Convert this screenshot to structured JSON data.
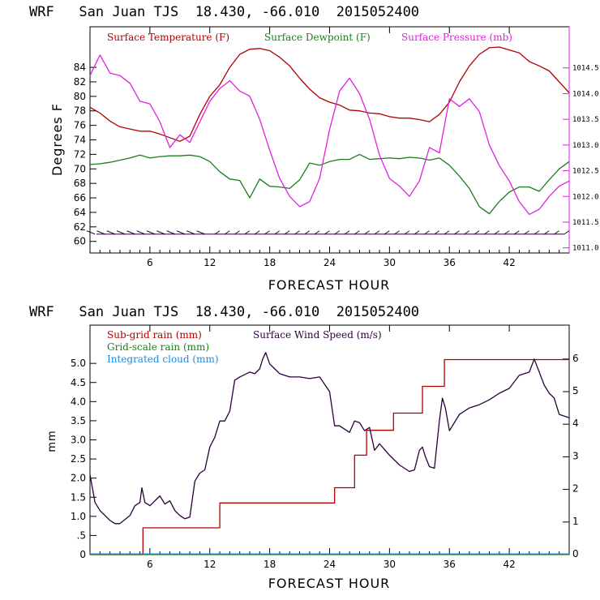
{
  "chart_data": [
    {
      "type": "line",
      "title": "WRF   San Juan TJS  18.430, -66.010  2015052400",
      "xlabel": "FORECAST HOUR",
      "ylabel": "Degrees F",
      "xlim": [
        0,
        48
      ],
      "ylim": [
        58.4,
        89.6
      ],
      "xticks": [
        "6",
        "12",
        "18",
        "24",
        "30",
        "36",
        "42"
      ],
      "yticks": [
        "60",
        "62",
        "64",
        "66",
        "68",
        "70",
        "72",
        "74",
        "76",
        "78",
        "80",
        "82",
        "84"
      ],
      "y2lim": [
        1010.9,
        1015.3
      ],
      "y2ticks": [
        "1011.0",
        "1011.5",
        "1012.0",
        "1012.5",
        "1013.0",
        "1013.5",
        "1014.0",
        "1014.5"
      ],
      "legend_position": "top",
      "colors": {
        "temperature": "#b00000",
        "dewpoint": "#1c7c1c",
        "pressure": "#e020e0",
        "barbs": "#2a003a"
      },
      "series": [
        {
          "name": "Surface Temperature (F)",
          "axis": "left",
          "x": [
            0,
            1,
            2,
            3,
            4,
            5,
            6,
            7,
            8,
            9,
            10,
            11,
            12,
            13,
            14,
            15,
            16,
            17,
            18,
            19,
            20,
            21,
            22,
            23,
            24,
            25,
            26,
            27,
            28,
            29,
            30,
            31,
            32,
            33,
            34,
            35,
            36,
            37,
            38,
            39,
            40,
            41,
            42,
            43,
            44,
            45,
            46,
            47,
            48
          ],
          "values": [
            78.5,
            77.7,
            76.6,
            75.8,
            75.5,
            75.2,
            75.2,
            74.8,
            74.3,
            73.8,
            74.5,
            77.5,
            80,
            81.6,
            84,
            85.8,
            86.5,
            86.6,
            86.3,
            85.4,
            84.2,
            82.5,
            81,
            79.8,
            79.2,
            78.8,
            78.1,
            78,
            77.7,
            77.6,
            77.2,
            77,
            77,
            76.8,
            76.5,
            77.5,
            79.2,
            82,
            84.2,
            85.8,
            86.7,
            86.8,
            86.4,
            86,
            84.8,
            84.2,
            83.5,
            82,
            80.5
          ]
        },
        {
          "name": "Surface Dewpoint (F)",
          "axis": "left",
          "x": [
            0,
            1,
            2,
            3,
            4,
            5,
            6,
            7,
            8,
            9,
            10,
            11,
            12,
            13,
            14,
            15,
            16,
            17,
            18,
            19,
            20,
            21,
            22,
            23,
            24,
            25,
            26,
            27,
            28,
            29,
            30,
            31,
            32,
            33,
            34,
            35,
            36,
            37,
            38,
            39,
            40,
            41,
            42,
            43,
            44,
            45,
            46,
            47,
            48
          ],
          "values": [
            70.6,
            70.7,
            70.9,
            71.2,
            71.5,
            71.9,
            71.5,
            71.7,
            71.8,
            71.8,
            71.9,
            71.7,
            71,
            69.6,
            68.6,
            68.4,
            66,
            68.6,
            67.6,
            67.5,
            67.3,
            68.5,
            70.8,
            70.5,
            71,
            71.3,
            71.3,
            72,
            71.3,
            71.4,
            71.5,
            71.4,
            71.6,
            71.5,
            71.2,
            71.5,
            70.5,
            69,
            67.3,
            64.8,
            63.8,
            65.5,
            66.8,
            67.5,
            67.5,
            66.9,
            68.5,
            70,
            71
          ]
        },
        {
          "name": "Surface Pressure (mb)",
          "axis": "right",
          "x": [
            0,
            1,
            2,
            3,
            4,
            5,
            6,
            7,
            8,
            9,
            10,
            11,
            12,
            13,
            14,
            15,
            16,
            17,
            18,
            19,
            20,
            21,
            22,
            23,
            24,
            25,
            26,
            27,
            28,
            29,
            30,
            31,
            32,
            33,
            34,
            35,
            36,
            37,
            38,
            39,
            40,
            41,
            42,
            43,
            44,
            45,
            46,
            47,
            48
          ],
          "values": [
            1014.35,
            1014.75,
            1014.4,
            1014.35,
            1014.2,
            1013.85,
            1013.8,
            1013.45,
            1012.95,
            1013.2,
            1013.05,
            1013.45,
            1013.85,
            1014.1,
            1014.25,
            1014.05,
            1013.95,
            1013.5,
            1012.9,
            1012.35,
            1012.0,
            1011.8,
            1011.9,
            1012.35,
            1013.3,
            1014.05,
            1014.3,
            1014.0,
            1013.5,
            1012.8,
            1012.35,
            1012.2,
            1012.0,
            1012.3,
            1012.95,
            1012.85,
            1013.9,
            1013.75,
            1013.9,
            1013.65,
            1013.0,
            1012.6,
            1012.3,
            1011.9,
            1011.65,
            1011.75,
            1012.0,
            1012.2,
            1012.3
          ]
        }
      ]
    },
    {
      "type": "line",
      "title": "WRF   San Juan TJS  18.430, -66.010  2015052400",
      "xlabel": "FORECAST HOUR",
      "ylabel": "mm",
      "xlim": [
        0,
        48
      ],
      "ylim": [
        0,
        6.0
      ],
      "xticks": [
        "6",
        "12",
        "18",
        "24",
        "30",
        "36",
        "42"
      ],
      "yticks": [
        "0",
        ".5",
        "1.0",
        "1.5",
        "2.0",
        "2.5",
        "3.0",
        "3.5",
        "4.0",
        "4.5",
        "5.0"
      ],
      "y2lim": [
        0,
        7.04
      ],
      "y2ticks": [
        "0",
        "1",
        "2",
        "3",
        "4",
        "5",
        "6"
      ],
      "legend_position": "top-left",
      "colors": {
        "subgrid": "#b00000",
        "gridscale": "#1c7c1c",
        "cloud": "#1c8ce0",
        "wind": "#2a003a"
      },
      "series": [
        {
          "name": "Sub-grid rain (mm)",
          "axis": "left",
          "step": true,
          "x": [
            0,
            5.2,
            5.3,
            12.7,
            13,
            23.7,
            24.5,
            25.7,
            26.5,
            27.7,
            28.6,
            30.1,
            30.4,
            32.9,
            33.3,
            34.8,
            35.5,
            48
          ],
          "values": [
            0,
            0,
            0.7,
            0.7,
            1.35,
            1.35,
            1.75,
            1.75,
            2.6,
            3.25,
            3.25,
            3.25,
            3.7,
            3.7,
            4.4,
            4.4,
            5.1,
            5.1
          ]
        },
        {
          "name": "Grid-scale rain (mm)",
          "axis": "left",
          "x": [
            0,
            48
          ],
          "values": [
            0,
            0
          ]
        },
        {
          "name": "Integrated cloud (mm)",
          "axis": "left",
          "x": [
            0,
            48
          ],
          "values": [
            0.02,
            0.02
          ]
        },
        {
          "name": "Surface Wind Speed (m/s)",
          "axis": "right",
          "x": [
            0,
            0.5,
            1,
            2,
            2.5,
            3,
            4,
            4.5,
            5,
            5.2,
            5.5,
            6,
            7,
            7.5,
            8,
            8.5,
            9,
            9.5,
            10,
            10.5,
            11,
            11.5,
            12,
            12.5,
            13,
            13.5,
            14,
            14.5,
            15,
            16,
            16.5,
            17,
            17.3,
            17.6,
            18,
            18.5,
            19,
            20,
            21,
            22,
            23,
            24,
            24.5,
            25,
            26,
            26.5,
            27,
            27.5,
            28,
            28.5,
            29,
            30,
            31,
            32,
            32.5,
            33,
            33.3,
            33.6,
            34,
            34.5,
            35,
            35.3,
            35.6,
            36,
            37,
            38,
            39,
            40,
            41,
            42,
            43,
            44,
            44.5,
            45,
            45.5,
            46,
            46.5,
            47,
            48
          ],
          "values": [
            2.45,
            1.6,
            1.35,
            1.05,
            0.95,
            0.95,
            1.2,
            1.5,
            1.6,
            2.05,
            1.6,
            1.5,
            1.8,
            1.55,
            1.65,
            1.35,
            1.2,
            1.1,
            1.15,
            2.25,
            2.5,
            2.6,
            3.3,
            3.6,
            4.1,
            4.1,
            4.4,
            5.35,
            5.45,
            5.6,
            5.55,
            5.7,
            6.0,
            6.2,
            5.85,
            5.7,
            5.55,
            5.45,
            5.45,
            5.4,
            5.45,
            5.0,
            3.95,
            3.95,
            3.75,
            4.1,
            4.05,
            3.8,
            3.9,
            3.2,
            3.4,
            3.05,
            2.75,
            2.55,
            2.6,
            3.2,
            3.3,
            3.0,
            2.7,
            2.65,
            4.1,
            4.8,
            4.5,
            3.8,
            4.3,
            4.5,
            4.6,
            4.75,
            4.95,
            5.1,
            5.5,
            5.6,
            6.0,
            5.6,
            5.2,
            4.95,
            4.8,
            4.3,
            4.2
          ]
        }
      ]
    }
  ]
}
